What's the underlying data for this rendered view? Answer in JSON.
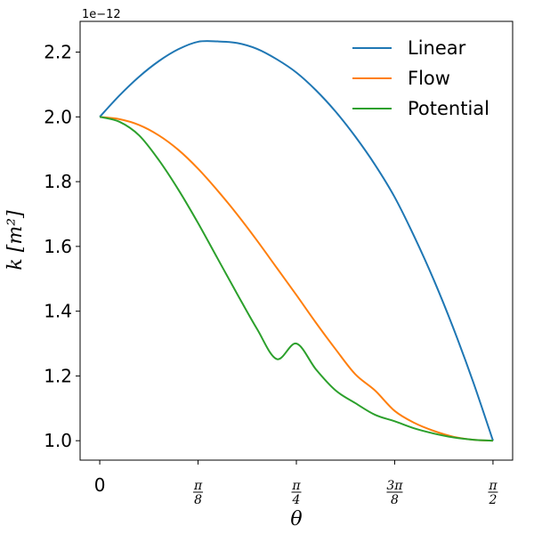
{
  "chart_data": {
    "type": "line",
    "title": "",
    "xlabel": "θ",
    "ylabel": "k [m²]",
    "offset_text": "1e−12",
    "xlim": [
      -0.0785,
      1.6493
    ],
    "ylim": [
      0.94,
      2.295
    ],
    "grid": false,
    "legend_position": "top-right",
    "y_ticks": [
      {
        "value": 1.0,
        "label": "1.0"
      },
      {
        "value": 1.2,
        "label": "1.2"
      },
      {
        "value": 1.4,
        "label": "1.4"
      },
      {
        "value": 1.6,
        "label": "1.6"
      },
      {
        "value": 1.8,
        "label": "1.8"
      },
      {
        "value": 2.0,
        "label": "2.0"
      },
      {
        "value": 2.2,
        "label": "2.2"
      }
    ],
    "x_ticks": [
      {
        "value": 0,
        "label": "0"
      },
      {
        "value": 0.3927,
        "num": "π",
        "den": "8"
      },
      {
        "value": 0.7854,
        "num": "π",
        "den": "4"
      },
      {
        "value": 1.1781,
        "num": "3π",
        "den": "8"
      },
      {
        "value": 1.5708,
        "num": "π",
        "den": "2"
      }
    ],
    "series": [
      {
        "name": "Linear",
        "color": "#1f77b4",
        "x": [
          0,
          0.0785,
          0.1571,
          0.2356,
          0.3142,
          0.3927,
          0.4712,
          0.5498,
          0.6283,
          0.7069,
          0.7854,
          0.8639,
          0.9425,
          1.021,
          1.0996,
          1.1781,
          1.2566,
          1.3352,
          1.4137,
          1.4923,
          1.5708
        ],
        "y": [
          2.0,
          2.066,
          2.124,
          2.172,
          2.209,
          2.232,
          2.233,
          2.228,
          2.21,
          2.178,
          2.137,
          2.082,
          2.016,
          1.939,
          1.852,
          1.752,
          1.63,
          1.495,
          1.345,
          1.18,
          1.0
        ]
      },
      {
        "name": "Flow",
        "color": "#ff7f0e",
        "x": [
          0,
          0.0785,
          0.1571,
          0.2356,
          0.3142,
          0.3927,
          0.4712,
          0.5498,
          0.6283,
          0.7069,
          0.7854,
          0.8639,
          0.9425,
          1.021,
          1.0996,
          1.1781,
          1.2566,
          1.3352,
          1.4137,
          1.4923,
          1.5708
        ],
        "y": [
          2.0,
          1.993,
          1.975,
          1.943,
          1.898,
          1.84,
          1.772,
          1.698,
          1.618,
          1.534,
          1.45,
          1.364,
          1.282,
          1.205,
          1.155,
          1.092,
          1.055,
          1.03,
          1.012,
          1.003,
          1.0
        ]
      },
      {
        "name": "Potential",
        "color": "#2ca02c",
        "x": [
          0,
          0.0785,
          0.1571,
          0.2356,
          0.3142,
          0.3927,
          0.4712,
          0.5498,
          0.6283,
          0.7069,
          0.7854,
          0.8639,
          0.9425,
          1.021,
          1.0996,
          1.1781,
          1.2566,
          1.3352,
          1.4137,
          1.4923,
          1.5708
        ],
        "y": [
          2.0,
          1.985,
          1.943,
          1.867,
          1.775,
          1.672,
          1.562,
          1.452,
          1.345,
          1.252,
          1.3,
          1.22,
          1.155,
          1.116,
          1.08,
          1.06,
          1.038,
          1.022,
          1.01,
          1.003,
          1.0
        ]
      }
    ]
  }
}
